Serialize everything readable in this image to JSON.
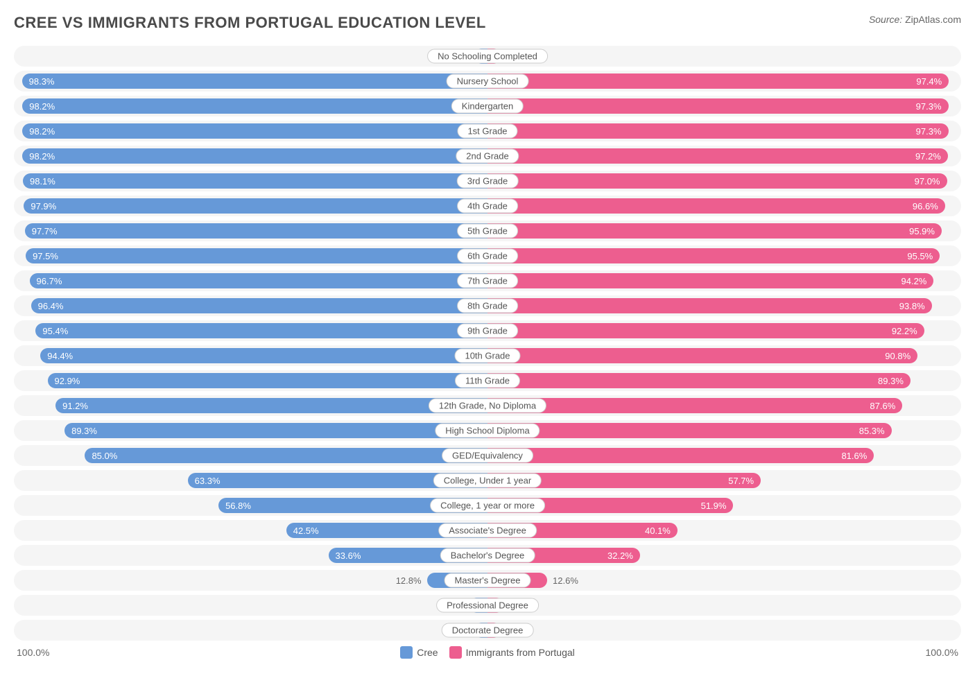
{
  "title": "CREE VS IMMIGRANTS FROM PORTUGAL EDUCATION LEVEL",
  "source_label": "Source:",
  "source_value": "ZipAtlas.com",
  "chart": {
    "type": "diverging-bar",
    "left_color": "#6699d8",
    "right_color": "#ed5e8f",
    "background_color": "#f5f5f5",
    "value_inside_threshold": 20,
    "categories": [
      {
        "label": "No Schooling Completed",
        "left_value": 1.9,
        "right_value": 2.7
      },
      {
        "label": "Nursery School",
        "left_value": 98.3,
        "right_value": 97.4
      },
      {
        "label": "Kindergarten",
        "left_value": 98.2,
        "right_value": 97.3
      },
      {
        "label": "1st Grade",
        "left_value": 98.2,
        "right_value": 97.3
      },
      {
        "label": "2nd Grade",
        "left_value": 98.2,
        "right_value": 97.2
      },
      {
        "label": "3rd Grade",
        "left_value": 98.1,
        "right_value": 97.0
      },
      {
        "label": "4th Grade",
        "left_value": 97.9,
        "right_value": 96.6
      },
      {
        "label": "5th Grade",
        "left_value": 97.7,
        "right_value": 95.9
      },
      {
        "label": "6th Grade",
        "left_value": 97.5,
        "right_value": 95.5
      },
      {
        "label": "7th Grade",
        "left_value": 96.7,
        "right_value": 94.2
      },
      {
        "label": "8th Grade",
        "left_value": 96.4,
        "right_value": 93.8
      },
      {
        "label": "9th Grade",
        "left_value": 95.4,
        "right_value": 92.2
      },
      {
        "label": "10th Grade",
        "left_value": 94.4,
        "right_value": 90.8
      },
      {
        "label": "11th Grade",
        "left_value": 92.9,
        "right_value": 89.3
      },
      {
        "label": "12th Grade, No Diploma",
        "left_value": 91.2,
        "right_value": 87.6
      },
      {
        "label": "High School Diploma",
        "left_value": 89.3,
        "right_value": 85.3
      },
      {
        "label": "GED/Equivalency",
        "left_value": 85.0,
        "right_value": 81.6
      },
      {
        "label": "College, Under 1 year",
        "left_value": 63.3,
        "right_value": 57.7
      },
      {
        "label": "College, 1 year or more",
        "left_value": 56.8,
        "right_value": 51.9
      },
      {
        "label": "Associate's Degree",
        "left_value": 42.5,
        "right_value": 40.1
      },
      {
        "label": "Bachelor's Degree",
        "left_value": 33.6,
        "right_value": 32.2
      },
      {
        "label": "Master's Degree",
        "left_value": 12.8,
        "right_value": 12.6
      },
      {
        "label": "Professional Degree",
        "left_value": 3.9,
        "right_value": 3.5
      },
      {
        "label": "Doctorate Degree",
        "left_value": 1.6,
        "right_value": 1.5
      }
    ],
    "axis_max_label": "100.0%",
    "legend": {
      "left_label": "Cree",
      "right_label": "Immigrants from Portugal"
    }
  }
}
